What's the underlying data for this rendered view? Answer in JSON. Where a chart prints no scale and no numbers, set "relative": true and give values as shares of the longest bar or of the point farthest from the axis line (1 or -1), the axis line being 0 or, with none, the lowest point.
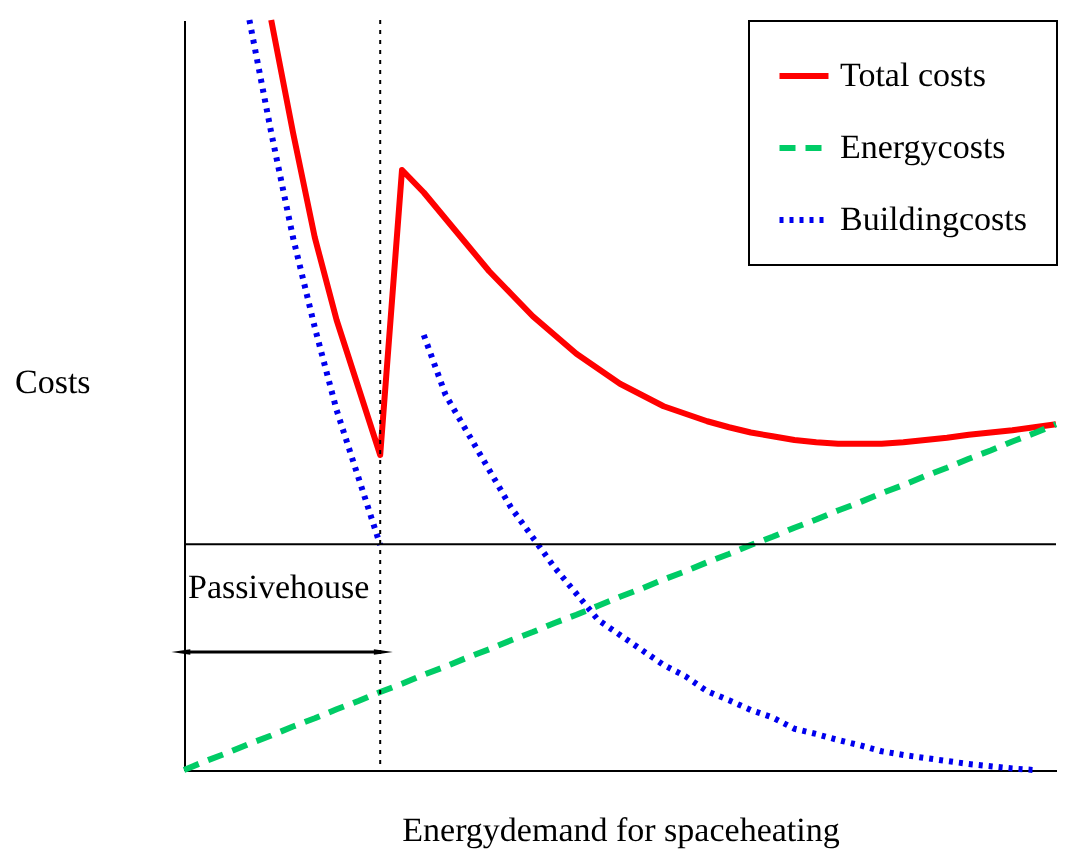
{
  "chart_data": {
    "type": "line",
    "relative": true,
    "xlabel": "Energydemand for spaceheating",
    "ylabel": "Costs",
    "grid": false,
    "legend": "top right",
    "marker": "none",
    "categories": [
      null,
      null,
      null,
      null,
      null,
      null,
      null,
      null,
      null,
      null,
      null,
      null,
      null,
      null,
      null,
      null,
      null,
      null,
      null,
      null,
      null,
      null,
      null,
      null,
      null,
      null,
      null,
      null,
      null,
      null,
      null,
      null,
      null,
      null,
      null,
      null,
      null,
      null,
      null,
      null,
      null
    ],
    "series": [
      {
        "name": "Total costs",
        "color": "#ff0000",
        "line_style": "solid",
        "values": [
          null,
          null,
          null,
          null,
          1.0,
          0.85,
          0.71,
          0.6,
          0.51,
          0.42,
          0.8,
          0.77,
          0.735,
          0.7,
          0.665,
          0.635,
          0.605,
          0.58,
          0.555,
          0.535,
          0.515,
          0.5,
          0.485,
          0.475,
          0.465,
          0.457,
          0.45,
          0.445,
          0.44,
          0.437,
          0.435,
          0.435,
          0.435,
          0.437,
          0.44,
          0.443,
          0.447,
          0.45,
          0.453,
          0.457,
          0.461
        ]
      },
      {
        "name": "Energycosts",
        "color": "#00cc66",
        "line_style": "dashed",
        "values": [
          0,
          0.012,
          0.023,
          0.035,
          0.046,
          0.058,
          0.069,
          0.081,
          0.092,
          0.104,
          0.115,
          0.127,
          0.138,
          0.15,
          0.161,
          0.173,
          0.184,
          0.196,
          0.207,
          0.219,
          0.231,
          0.242,
          0.254,
          0.265,
          0.277,
          0.288,
          0.3,
          0.311,
          0.323,
          0.334,
          0.346,
          0.357,
          0.369,
          0.38,
          0.392,
          0.403,
          0.415,
          0.426,
          0.438,
          0.449,
          0.461
        ]
      },
      {
        "name": "Buildingcosts",
        "color": "#0000ee",
        "line_style": "dotted",
        "values": [
          null,
          null,
          null,
          1.0,
          0.85,
          0.71,
          0.59,
          0.48,
          0.39,
          0.3,
          null,
          0.58,
          0.5,
          0.45,
          0.4,
          0.35,
          0.31,
          0.27,
          0.235,
          0.2,
          0.18,
          0.16,
          0.14,
          0.125,
          0.105,
          0.093,
          0.08,
          0.07,
          0.055,
          0.048,
          0.04,
          0.033,
          0.025,
          0.02,
          0.016,
          0.012,
          0.008,
          0.005,
          0.002,
          0.0,
          null
        ]
      }
    ],
    "ref_lines": [
      {
        "axis": "x",
        "line_style": "dotted",
        "color": "#000000"
      },
      {
        "axis": "y",
        "value": 0.301,
        "line_style": "solid",
        "color": "#000000"
      }
    ],
    "annotations": [
      "Passivehouse"
    ]
  }
}
